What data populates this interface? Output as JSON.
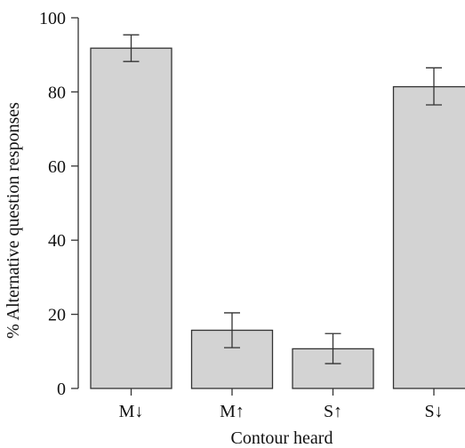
{
  "chart_data": {
    "type": "bar",
    "title": "",
    "xlabel": "Contour heard",
    "ylabel": "% Alternative question responses",
    "categories": [
      "M↓",
      "M↑",
      "S↑",
      "S↓"
    ],
    "values": [
      91.8,
      15.7,
      10.7,
      81.4
    ],
    "error_low": [
      88.2,
      11.0,
      6.7,
      76.5
    ],
    "error_high": [
      95.4,
      20.4,
      14.8,
      86.5
    ],
    "ylim": [
      0,
      100
    ],
    "yticks": [
      0,
      20,
      40,
      60,
      80,
      100
    ],
    "grid": false,
    "bar_color": "#d3d3d3",
    "edge_color": "#333333"
  }
}
